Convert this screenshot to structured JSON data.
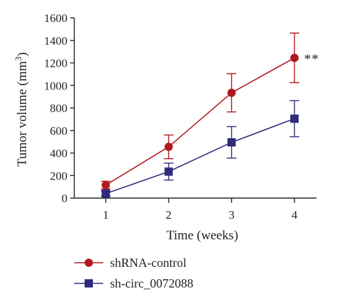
{
  "chart_data": {
    "type": "line",
    "x": [
      1,
      2,
      3,
      4
    ],
    "xlabel": "Time (weeks)",
    "ylabel_main": "Tumor volume (mm",
    "ylabel_sup": "3",
    "ylabel_close": ")",
    "xlim": [
      0.5,
      4.35
    ],
    "ylim": [
      0,
      1600
    ],
    "xticks": [
      "1",
      "2",
      "3",
      "4"
    ],
    "yticks": [
      "0",
      "200",
      "400",
      "600",
      "800",
      "1000",
      "1200",
      "1400",
      "1600"
    ],
    "series": [
      {
        "name": "shRNA-control",
        "marker": "circle",
        "color": "#b0191e",
        "values": [
          115,
          455,
          935,
          1245
        ],
        "error": [
          35,
          105,
          170,
          220
        ]
      },
      {
        "name": "sh-circ_0072088",
        "marker": "square",
        "color": "#2e2a7d",
        "values": [
          40,
          235,
          495,
          705
        ],
        "error": [
          20,
          75,
          140,
          160
        ]
      }
    ],
    "annotation": "**",
    "grid": false,
    "legend_position": "bottom-left"
  }
}
